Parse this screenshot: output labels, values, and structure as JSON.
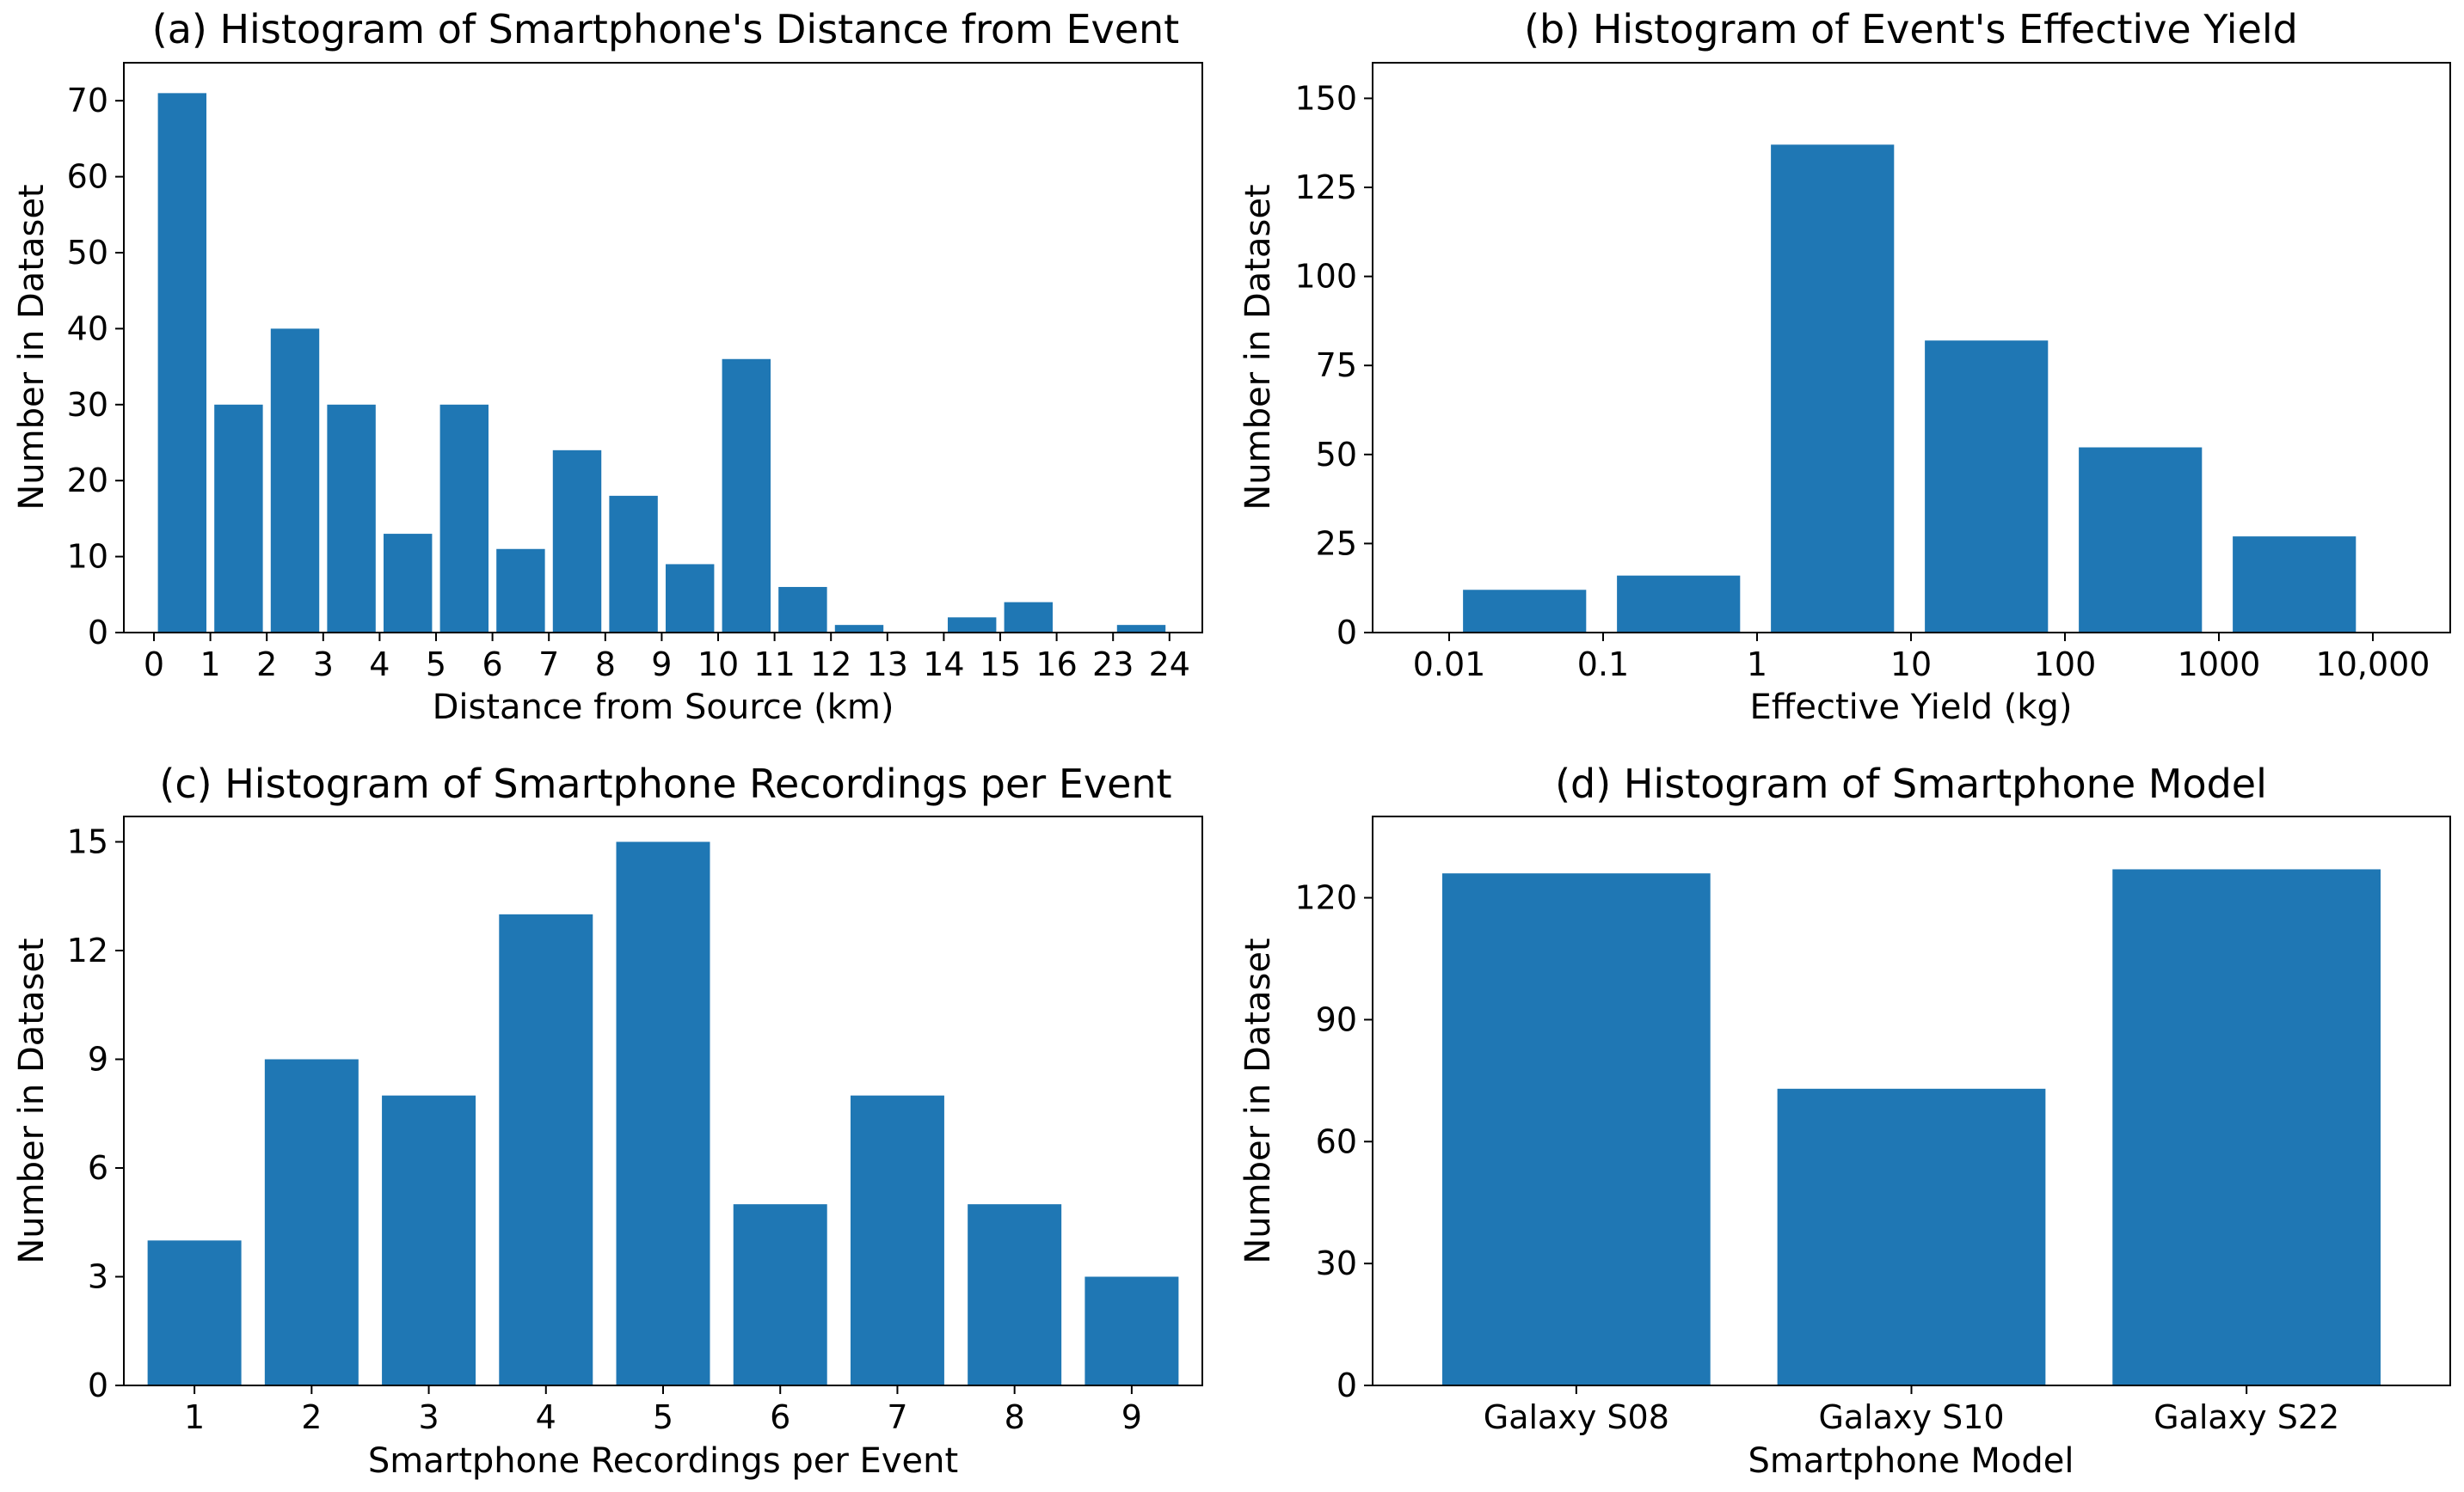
{
  "chart_data": [
    {
      "id": "a",
      "type": "bar",
      "title": "(a) Histogram of Smartphone's Distance from Event",
      "xlabel": "Distance from Source (km)",
      "ylabel": "Number in Dataset",
      "x_ticks": [
        "0",
        "1",
        "2",
        "3",
        "4",
        "5",
        "6",
        "7",
        "8",
        "9",
        "10",
        "11",
        "12",
        "13",
        "14",
        "15",
        "16",
        "23",
        "24"
      ],
      "values": [
        71,
        30,
        40,
        30,
        13,
        30,
        11,
        24,
        18,
        9,
        36,
        6,
        1,
        0,
        2,
        4,
        0,
        1
      ],
      "ylim": [
        0,
        75
      ],
      "y_ticks": [
        0,
        10,
        20,
        30,
        40,
        50,
        60,
        70
      ],
      "bar_color": "#1f77b4",
      "grid": false
    },
    {
      "id": "b",
      "type": "bar",
      "title": "(b) Histogram of Event's Effective Yield",
      "xlabel": "Effective Yield (kg)",
      "ylabel": "Number in Dataset",
      "x_ticks": [
        "0.01",
        "0.1",
        "1",
        "10",
        "100",
        "1000",
        "10,000"
      ],
      "values": [
        12,
        16,
        137,
        82,
        52,
        27
      ],
      "ylim": [
        0,
        160
      ],
      "y_ticks": [
        0,
        25,
        50,
        75,
        100,
        125,
        150
      ],
      "bar_color": "#1f77b4",
      "grid": false
    },
    {
      "id": "c",
      "type": "bar",
      "title": "(c) Histogram of Smartphone Recordings per Event",
      "xlabel": "Smartphone Recordings per Event",
      "ylabel": "Number in Dataset",
      "categories": [
        "1",
        "2",
        "3",
        "4",
        "5",
        "6",
        "7",
        "8",
        "9"
      ],
      "values": [
        4,
        9,
        8,
        13,
        15,
        5,
        8,
        5,
        3
      ],
      "ylim": [
        0,
        15.7
      ],
      "y_ticks": [
        0,
        3,
        6,
        9,
        12,
        15
      ],
      "bar_color": "#1f77b4",
      "grid": false
    },
    {
      "id": "d",
      "type": "bar",
      "title": "(d) Histogram of Smartphone Model",
      "xlabel": "Smartphone Model",
      "ylabel": "Number in Dataset",
      "categories": [
        "Galaxy S08",
        "Galaxy S10",
        "Galaxy S22"
      ],
      "values": [
        126,
        73,
        127
      ],
      "ylim": [
        0,
        140
      ],
      "y_ticks": [
        0,
        30,
        60,
        90,
        120
      ],
      "bar_color": "#1f77b4",
      "grid": false
    }
  ]
}
